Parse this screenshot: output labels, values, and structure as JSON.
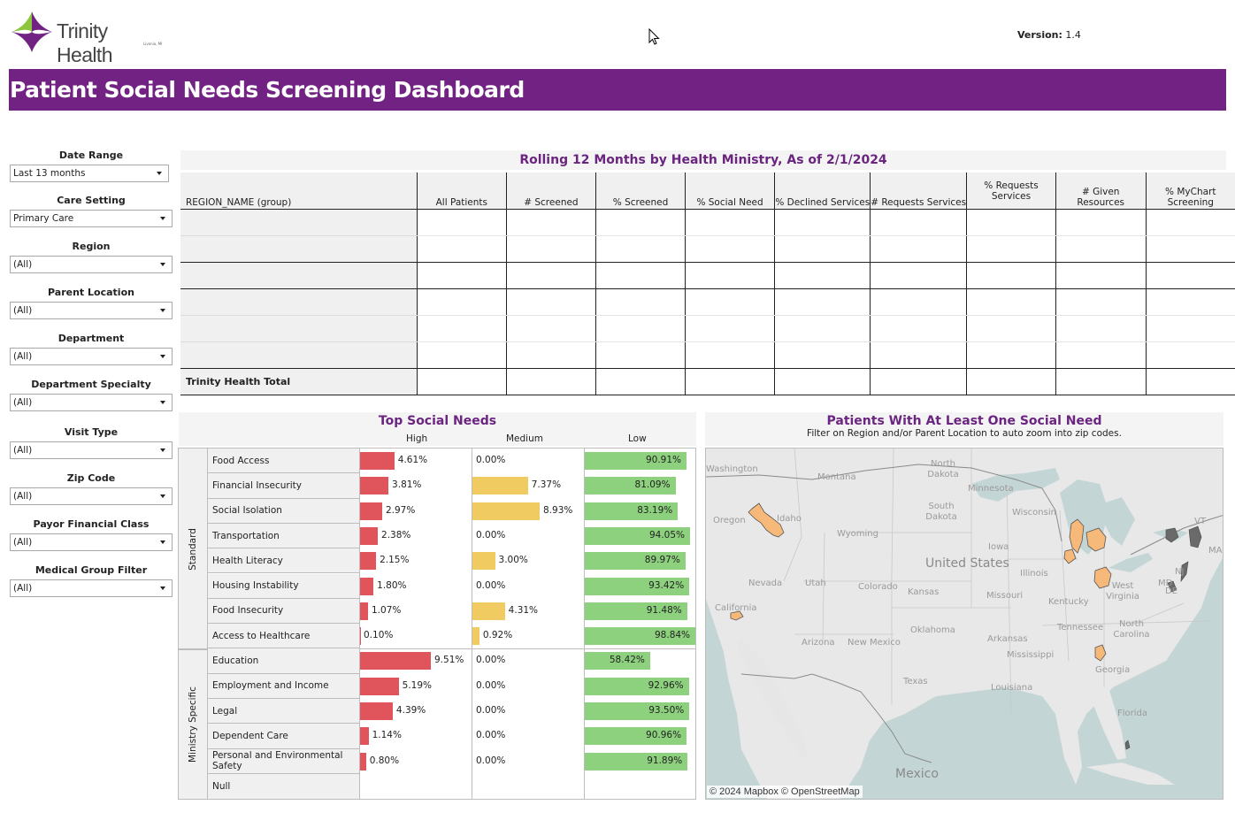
{
  "header": {
    "logo_name": "Trinity Health",
    "logo_subtitle": "Livonia, MI",
    "version_label": "Version:",
    "version_value": "1.4",
    "dashboard_title": "Patient Social Needs Screening Dashboard"
  },
  "filters": [
    {
      "label": "Date Range",
      "value": "Last 13 months"
    },
    {
      "label": "Care Setting",
      "value": "Primary Care"
    },
    {
      "label": "Region",
      "value": "(All)"
    },
    {
      "label": "Parent Location",
      "value": "(All)"
    },
    {
      "label": "Department",
      "value": "(All)"
    },
    {
      "label": "Department Specialty",
      "value": "(All)"
    },
    {
      "label": "Visit Type",
      "value": "(All)"
    },
    {
      "label": "Zip Code",
      "value": "(All)"
    },
    {
      "label": "Payor Financial Class",
      "value": "(All)"
    },
    {
      "label": "Medical Group Filter",
      "value": "(All)"
    }
  ],
  "rolling_table": {
    "title": "Rolling 12 Months by Health Ministry, As of 2/1/2024",
    "columns": [
      "REGION_NAME (group)",
      "All Patients",
      "# Screened",
      "% Screened",
      "% Social Need",
      "% Declined Services",
      "# Requests Services",
      "% Requests Services",
      "# Given Resources",
      "% MyChart Screening"
    ],
    "total_row_label": "Trinity Health Total"
  },
  "top_social_needs": {
    "title": "Top Social Needs",
    "columns": [
      "High",
      "Medium",
      "Low"
    ],
    "colors": {
      "high": "#e0555c",
      "medium": "#f0cb62",
      "low": "#8dd17e"
    },
    "groups": [
      {
        "name": "Standard",
        "rows": [
          {
            "need": "Food Access",
            "high": 4.61,
            "medium": 0.0,
            "low": 90.91
          },
          {
            "need": "Financial Insecurity",
            "high": 3.81,
            "medium": 7.37,
            "low": 81.09
          },
          {
            "need": "Social Isolation",
            "high": 2.97,
            "medium": 8.93,
            "low": 83.19
          },
          {
            "need": "Transportation",
            "high": 2.38,
            "medium": 0.0,
            "low": 94.05
          },
          {
            "need": "Health Literacy",
            "high": 2.15,
            "medium": 3.0,
            "low": 89.97
          },
          {
            "need": "Housing Instability",
            "high": 1.8,
            "medium": 0.0,
            "low": 93.42
          },
          {
            "need": "Food Insecurity",
            "high": 1.07,
            "medium": 4.31,
            "low": 91.48
          },
          {
            "need": "Access to Healthcare",
            "high": 0.1,
            "medium": 0.92,
            "low": 98.84
          }
        ]
      },
      {
        "name": "Ministry Specific",
        "rows": [
          {
            "need": "Education",
            "high": 9.51,
            "medium": 0.0,
            "low": 58.42
          },
          {
            "need": "Employment and Income",
            "high": 5.19,
            "medium": 0.0,
            "low": 92.96
          },
          {
            "need": "Legal",
            "high": 4.39,
            "medium": 0.0,
            "low": 93.5
          },
          {
            "need": "Dependent Care",
            "high": 1.14,
            "medium": 0.0,
            "low": 90.96
          },
          {
            "need": "Personal and Environmental Safety",
            "high": 0.8,
            "medium": 0.0,
            "low": 91.89
          },
          {
            "need": "Null",
            "high": null,
            "medium": null,
            "low": null
          }
        ]
      }
    ]
  },
  "map": {
    "title": "Patients With At Least One Social Need",
    "subtitle": "Filter on Region and/or Parent Location to auto zoom into zip codes.",
    "attribution": "© 2024 Mapbox  © OpenStreetMap",
    "country_label": "United States",
    "country_label_2": "Mexico",
    "state_labels": [
      "Washington",
      "Montana",
      "North Dakota",
      "Minnesota",
      "Oregon",
      "Idaho",
      "South Dakota",
      "Wisconsin",
      "Wyoming",
      "Iowa",
      "Nevada",
      "Utah",
      "Colorado",
      "Kansas",
      "Illinois",
      "Missouri",
      "California",
      "Kentucky",
      "West Virginia",
      "Oklahoma",
      "Tennessee",
      "North Carolina",
      "Arizona",
      "New Mexico",
      "Arkansas",
      "Mississippi",
      "Georgia",
      "Texas",
      "Louisiana",
      "Florida",
      "MD",
      "DE",
      "NJ",
      "VT",
      "MA"
    ]
  }
}
